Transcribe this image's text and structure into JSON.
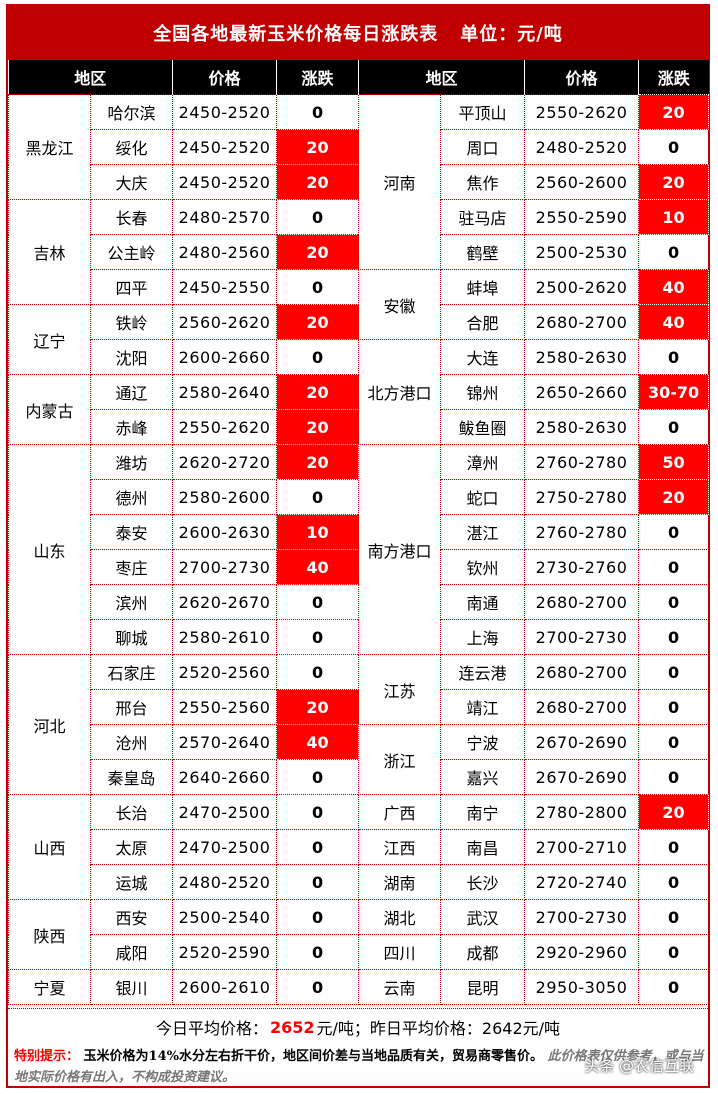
{
  "title": "全国各地最新玉米价格每日涨跌表",
  "unit": "单位：元/吨",
  "headers": [
    "地区",
    "价格",
    "涨跌",
    "地区",
    "价格",
    "涨跌"
  ],
  "left": [
    {
      "region": "黑龙江",
      "span": 3,
      "city": "哈尔滨",
      "price": "2450-2520",
      "change": "0"
    },
    {
      "city": "绥化",
      "price": "2450-2520",
      "change": "20"
    },
    {
      "city": "大庆",
      "price": "2450-2520",
      "change": "20"
    },
    {
      "region": "吉林",
      "span": 3,
      "city": "长春",
      "price": "2480-2570",
      "change": "0"
    },
    {
      "city": "公主岭",
      "price": "2480-2560",
      "change": "20"
    },
    {
      "city": "四平",
      "price": "2450-2550",
      "change": "0"
    },
    {
      "region": "辽宁",
      "span": 2,
      "city": "铁岭",
      "price": "2560-2620",
      "change": "20"
    },
    {
      "city": "沈阳",
      "price": "2600-2660",
      "change": "0"
    },
    {
      "region": "内蒙古",
      "span": 2,
      "city": "通辽",
      "price": "2580-2640",
      "change": "20"
    },
    {
      "city": "赤峰",
      "price": "2550-2620",
      "change": "20"
    },
    {
      "region": "山东",
      "span": 6,
      "city": "潍坊",
      "price": "2620-2720",
      "change": "20"
    },
    {
      "city": "德州",
      "price": "2580-2600",
      "change": "0"
    },
    {
      "city": "泰安",
      "price": "2600-2630",
      "change": "10"
    },
    {
      "city": "枣庄",
      "price": "2700-2730",
      "change": "40"
    },
    {
      "city": "滨州",
      "price": "2620-2670",
      "change": "0"
    },
    {
      "city": "聊城",
      "price": "2580-2610",
      "change": "0"
    },
    {
      "region": "河北",
      "span": 4,
      "city": "石家庄",
      "price": "2520-2560",
      "change": "0"
    },
    {
      "city": "邢台",
      "price": "2550-2560",
      "change": "20"
    },
    {
      "city": "沧州",
      "price": "2570-2640",
      "change": "40"
    },
    {
      "city": "秦皇岛",
      "price": "2640-2660",
      "change": "0"
    },
    {
      "region": "山西",
      "span": 3,
      "city": "长治",
      "price": "2470-2500",
      "change": "0"
    },
    {
      "city": "太原",
      "price": "2470-2500",
      "change": "0"
    },
    {
      "city": "运城",
      "price": "2480-2520",
      "change": "0"
    },
    {
      "region": "陕西",
      "span": 2,
      "city": "西安",
      "price": "2500-2540",
      "change": "0"
    },
    {
      "city": "咸阳",
      "price": "2520-2590",
      "change": "0"
    },
    {
      "region": "宁夏",
      "span": 1,
      "city": "银川",
      "price": "2600-2610",
      "change": "0"
    }
  ],
  "right": [
    {
      "region": "河南",
      "span": 5,
      "city": "平顶山",
      "price": "2550-2620",
      "change": "20"
    },
    {
      "city": "周口",
      "price": "2480-2520",
      "change": "0"
    },
    {
      "city": "焦作",
      "price": "2560-2600",
      "change": "20"
    },
    {
      "city": "驻马店",
      "price": "2550-2590",
      "change": "10"
    },
    {
      "city": "鹤壁",
      "price": "2500-2530",
      "change": "0"
    },
    {
      "region": "安徽",
      "span": 2,
      "city": "蚌埠",
      "price": "2500-2620",
      "change": "40"
    },
    {
      "city": "合肥",
      "price": "2680-2700",
      "change": "40"
    },
    {
      "region": "北方港口",
      "span": 3,
      "city": "大连",
      "price": "2580-2630",
      "change": "0"
    },
    {
      "city": "锦州",
      "price": "2650-2660",
      "change": "30-70"
    },
    {
      "city": "鲅鱼圈",
      "price": "2580-2630",
      "change": "0"
    },
    {
      "region": "南方港口",
      "span": 6,
      "city": "漳州",
      "price": "2760-2780",
      "change": "50"
    },
    {
      "city": "蛇口",
      "price": "2750-2780",
      "change": "20"
    },
    {
      "city": "湛江",
      "price": "2760-2780",
      "change": "0"
    },
    {
      "city": "钦州",
      "price": "2730-2760",
      "change": "0"
    },
    {
      "city": "南通",
      "price": "2680-2700",
      "change": "0"
    },
    {
      "city": "上海",
      "price": "2700-2730",
      "change": "0"
    },
    {
      "region": "江苏",
      "span": 2,
      "city": "连云港",
      "price": "2680-2700",
      "change": "0"
    },
    {
      "city": "靖江",
      "price": "2680-2700",
      "change": "0"
    },
    {
      "region": "浙江",
      "span": 2,
      "city": "宁波",
      "price": "2670-2690",
      "change": "0"
    },
    {
      "city": "嘉兴",
      "price": "2670-2690",
      "change": "0"
    },
    {
      "region": "广西",
      "span": 1,
      "city": "南宁",
      "price": "2780-2800",
      "change": "20"
    },
    {
      "region": "江西",
      "span": 1,
      "city": "南昌",
      "price": "2700-2710",
      "change": "0"
    },
    {
      "region": "湖南",
      "span": 1,
      "city": "长沙",
      "price": "2720-2740",
      "change": "0"
    },
    {
      "region": "湖北",
      "span": 1,
      "city": "武汉",
      "price": "2700-2730",
      "change": "0"
    },
    {
      "region": "四川",
      "span": 1,
      "city": "成都",
      "price": "2920-2960",
      "change": "0"
    },
    {
      "region": "云南",
      "span": 1,
      "city": "昆明",
      "price": "2950-3050",
      "change": "0"
    }
  ],
  "summary": {
    "today_label": "今日平均价格：",
    "today_value": "2652",
    "today_unit": "元/吨；",
    "yesterday_label": "昨日平均价格：",
    "yesterday_value": "2642元/吨"
  },
  "note": {
    "label": "特别提示：",
    "text": "玉米价格为14%水分左右折干价，地区间价差与当地品质有关，贸易商零售价。",
    "disclaimer": "此价格表仅供参考，或与当地实际价格有出入，不构成投资建议。"
  },
  "watermark": "头条 @农信互联",
  "colors": {
    "accent": "#c00000",
    "rise": "#ff0000",
    "header": "#000000"
  }
}
